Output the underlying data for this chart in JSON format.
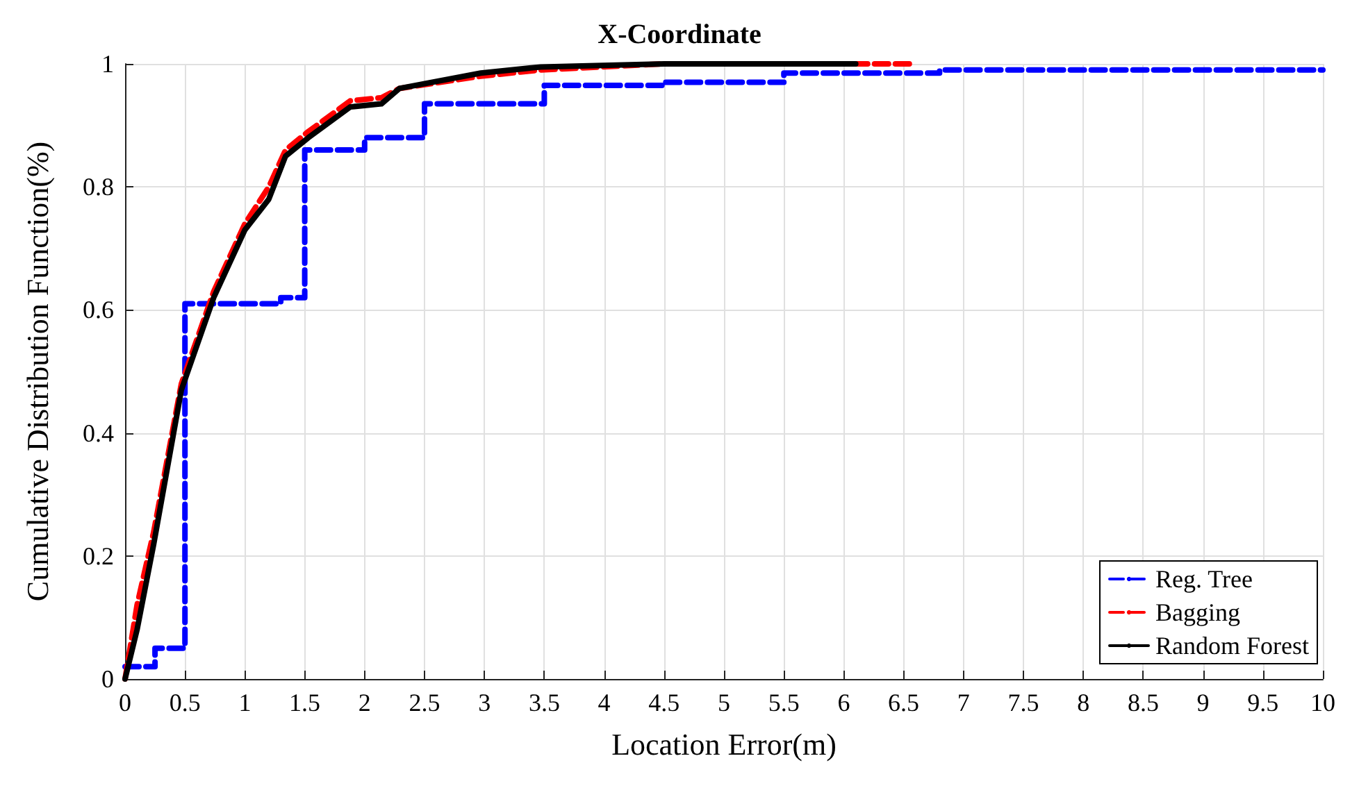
{
  "chart_data": {
    "type": "line",
    "title": "X-Coordinate",
    "xlabel": "Location Error(m)",
    "ylabel": "Cumulative Distribution Function(%)",
    "xlim": [
      0,
      10
    ],
    "xticks": [
      0,
      0.5,
      1,
      1.5,
      2,
      2.5,
      3,
      3.5,
      4,
      4.5,
      5,
      5.5,
      6,
      6.5,
      7,
      7.5,
      8,
      8.5,
      9,
      9.5,
      10
    ],
    "ylim": [
      0,
      1
    ],
    "yticks": [
      0,
      0.2,
      0.4,
      0.6,
      0.8,
      1
    ],
    "grid": true,
    "legend": "bottom right",
    "marker": "none",
    "series": [
      {
        "name": "Reg. Tree",
        "type": "step",
        "color": "#0000ff",
        "line_style": "dashed",
        "x": [
          0,
          0.25,
          0.5,
          1.3,
          1.5,
          2,
          2.5,
          3.5,
          4.5,
          5.5,
          6.8,
          10
        ],
        "values": [
          0.02,
          0.05,
          0.61,
          0.62,
          0.86,
          0.88,
          0.935,
          0.965,
          0.97,
          0.985,
          0.99,
          0.99
        ]
      },
      {
        "name": "Bagging",
        "color": "#ff0000",
        "line_style": "dashed",
        "x": [
          0,
          0.1,
          0.24,
          0.47,
          0.74,
          1.0,
          1.2,
          1.34,
          1.53,
          1.88,
          2.14,
          2.29,
          2.97,
          3.47,
          4.5,
          6.6
        ],
        "values": [
          0,
          0.12,
          0.24,
          0.48,
          0.63,
          0.74,
          0.8,
          0.86,
          0.89,
          0.94,
          0.945,
          0.96,
          0.98,
          0.99,
          1,
          1
        ]
      },
      {
        "name": "Random Forest",
        "color": "#000000",
        "line_style": "solid",
        "x": [
          0,
          0.1,
          0.24,
          0.47,
          0.74,
          1.0,
          1.2,
          1.34,
          1.53,
          1.88,
          2.14,
          2.29,
          2.97,
          3.47,
          4.5,
          6.1
        ],
        "values": [
          0,
          0.08,
          0.22,
          0.47,
          0.62,
          0.73,
          0.78,
          0.85,
          0.88,
          0.93,
          0.935,
          0.96,
          0.985,
          0.995,
          1,
          1
        ]
      }
    ]
  }
}
